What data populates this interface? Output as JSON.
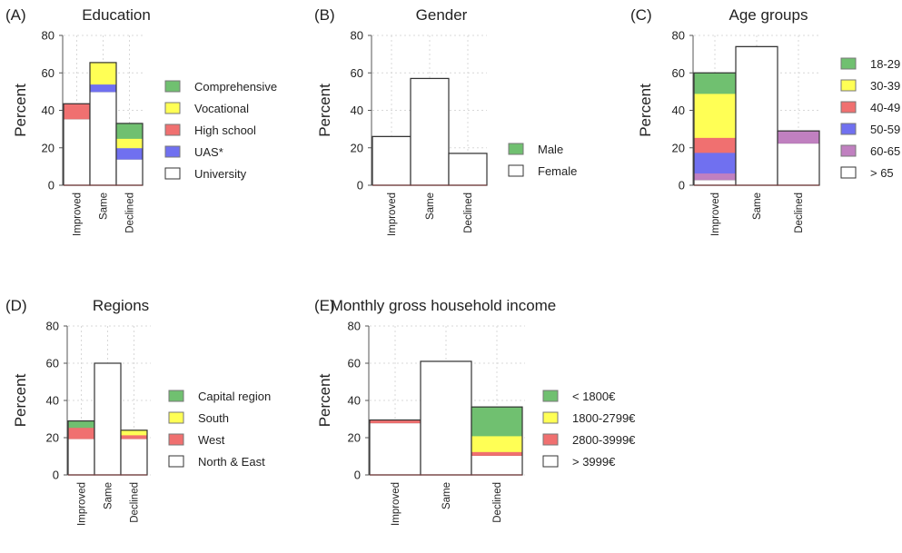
{
  "legend_heading_hidden": "",
  "colors": {
    "green": "#70c070",
    "yellow": "#ffff55",
    "red": "#f07070",
    "blue": "#7070f0",
    "purple": "#c080c0",
    "white": "#ffffff",
    "outline": "#333333",
    "grid": "#d8d8d8"
  },
  "chart_data": [
    {
      "type": "bar",
      "stacked": true,
      "panel_label": "(A)",
      "title": "Education",
      "ylabel": "Percent",
      "ylim": [
        0,
        80
      ],
      "yticks": [
        0,
        20,
        40,
        60,
        80
      ],
      "grid": true,
      "legend_position": "right",
      "categories": [
        "Improved",
        "Same",
        "Declined"
      ],
      "series": [
        {
          "name": "University",
          "color": "#ffffff",
          "values": [
            35.5,
            50,
            14
          ]
        },
        {
          "name": "UAS*",
          "color": "#7070f0",
          "values": [
            0,
            4,
            6
          ]
        },
        {
          "name": "High school",
          "color": "#f07070",
          "values": [
            8,
            0,
            0
          ]
        },
        {
          "name": "Vocational",
          "color": "#ffff55",
          "values": [
            0,
            11.5,
            5
          ]
        },
        {
          "name": "Comprehensive",
          "color": "#70c070",
          "values": [
            0,
            0,
            8
          ]
        }
      ]
    },
    {
      "type": "bar",
      "stacked": true,
      "panel_label": "(B)",
      "title": "Gender",
      "ylabel": "Percent",
      "ylim": [
        0,
        80
      ],
      "yticks": [
        0,
        20,
        40,
        60,
        80
      ],
      "grid": true,
      "legend_position": "right",
      "categories": [
        "Improved",
        "Same",
        "Declined"
      ],
      "series": [
        {
          "name": "Female",
          "color": "#ffffff",
          "values": [
            26,
            57,
            17
          ]
        },
        {
          "name": "Male",
          "color": "#70c070",
          "values": [
            0,
            0,
            0
          ]
        }
      ]
    },
    {
      "type": "bar",
      "stacked": true,
      "panel_label": "(C)",
      "title": "Age groups",
      "ylabel": "Percent",
      "ylim": [
        0,
        80
      ],
      "yticks": [
        0,
        20,
        40,
        60,
        80
      ],
      "grid": true,
      "legend_position": "right",
      "categories": [
        "Improved",
        "Same",
        "Declined"
      ],
      "series": [
        {
          "name": "> 65",
          "color": "#ffffff",
          "values": [
            3,
            74,
            22.5
          ]
        },
        {
          "name": "60-65",
          "color": "#c080c0",
          "values": [
            3.5,
            0,
            6.5
          ]
        },
        {
          "name": "50-59",
          "color": "#7070f0",
          "values": [
            11,
            0,
            0
          ]
        },
        {
          "name": "40-49",
          "color": "#f07070",
          "values": [
            8,
            0,
            0
          ]
        },
        {
          "name": "30-39",
          "color": "#ffff55",
          "values": [
            23.5,
            0,
            0
          ]
        },
        {
          "name": "18-29",
          "color": "#70c070",
          "values": [
            11,
            0,
            0
          ]
        }
      ]
    },
    {
      "type": "bar",
      "stacked": true,
      "panel_label": "(D)",
      "title": "Regions",
      "ylabel": "Percent",
      "ylim": [
        0,
        80
      ],
      "yticks": [
        0,
        20,
        40,
        60,
        80
      ],
      "grid": true,
      "legend_position": "right",
      "categories": [
        "Improved",
        "Same",
        "Declined"
      ],
      "series": [
        {
          "name": "North & East",
          "color": "#ffffff",
          "values": [
            19.5,
            60,
            19.5
          ]
        },
        {
          "name": "West",
          "color": "#f07070",
          "values": [
            6,
            0,
            2
          ]
        },
        {
          "name": "South",
          "color": "#ffff55",
          "values": [
            0,
            0,
            2.5
          ]
        },
        {
          "name": "Capital region",
          "color": "#70c070",
          "values": [
            3.5,
            0,
            0
          ]
        }
      ]
    },
    {
      "type": "bar",
      "stacked": true,
      "panel_label": "(E)",
      "title": "Monthly gross household income",
      "ylabel": "Percent",
      "ylim": [
        0,
        80
      ],
      "yticks": [
        0,
        20,
        40,
        60,
        80
      ],
      "grid": true,
      "legend_position": "right",
      "categories": [
        "Improved",
        "Same",
        "Declined"
      ],
      "series": [
        {
          "name": "> 3999€",
          "color": "#ffffff",
          "values": [
            28,
            61,
            10.5
          ]
        },
        {
          "name": "2800-3999€",
          "color": "#f07070",
          "values": [
            1.5,
            0,
            2
          ]
        },
        {
          "name": "1800-2799€",
          "color": "#ffff55",
          "values": [
            0,
            0,
            8.5
          ]
        },
        {
          "name": "< 1800€",
          "color": "#70c070",
          "values": [
            0,
            0,
            15.5
          ]
        }
      ]
    }
  ]
}
